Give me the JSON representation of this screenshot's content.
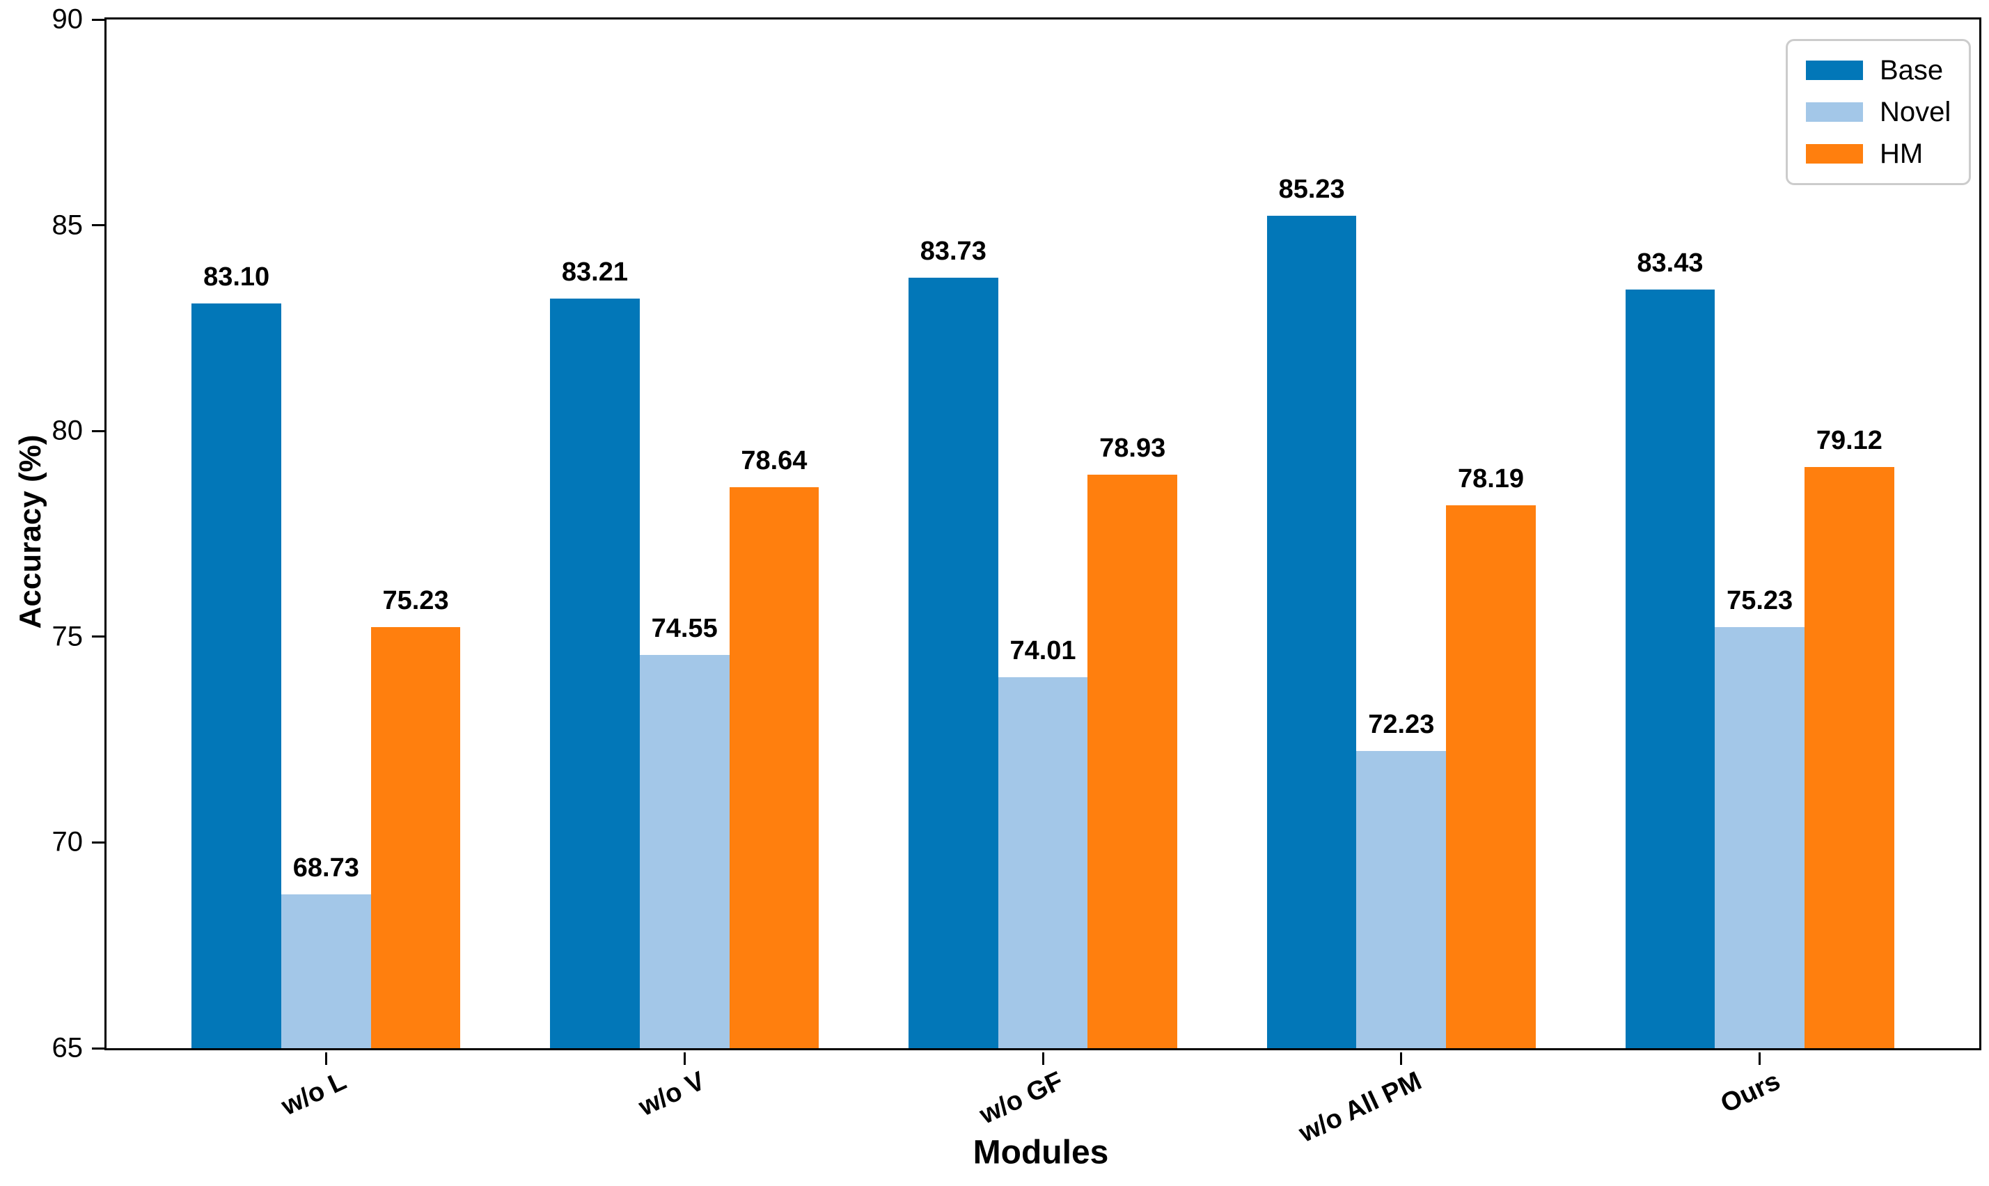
{
  "chart_data": {
    "type": "bar",
    "title": "",
    "xlabel": "Modules",
    "ylabel": "Accuracy (%)",
    "categories": [
      "w/o L",
      "w/o V",
      "w/o GF",
      "w/o All PM",
      "Ours"
    ],
    "series": [
      {
        "name": "Base",
        "color": "#0277b8",
        "values": [
          83.1,
          83.21,
          83.73,
          85.23,
          83.43
        ]
      },
      {
        "name": "Novel",
        "color": "#a3c7e8",
        "values": [
          68.73,
          74.55,
          74.01,
          72.23,
          75.23
        ]
      },
      {
        "name": "HM",
        "color": "#ff7f0e",
        "values": [
          75.23,
          78.64,
          78.93,
          78.19,
          79.12
        ]
      }
    ],
    "ylim": [
      65,
      90
    ],
    "yticks": [
      65,
      70,
      75,
      80,
      85,
      90
    ],
    "legend_position": "upper right",
    "grid": false,
    "value_label_decimals": 2,
    "axis_color": "#000000",
    "background_color": "#ffffff"
  }
}
